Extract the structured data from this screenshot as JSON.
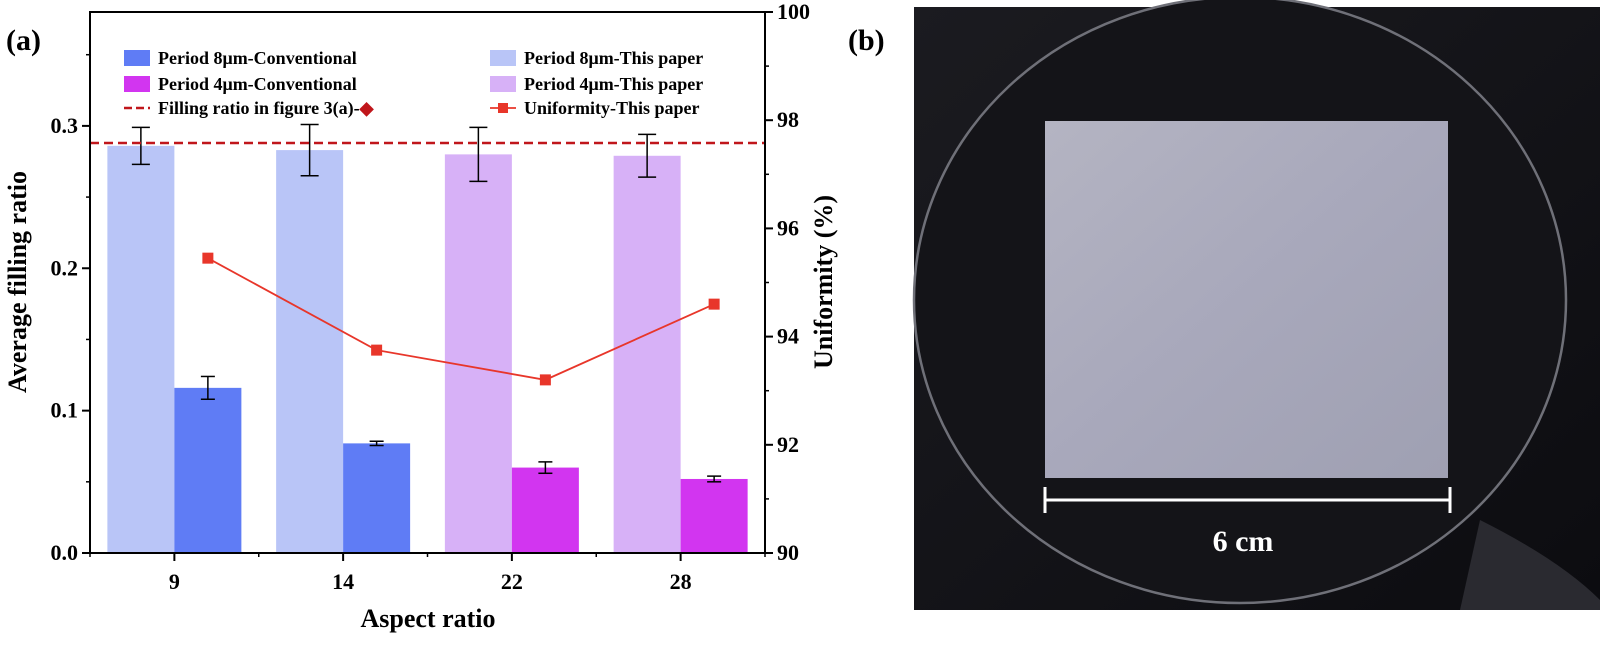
{
  "chart_data": {
    "type": "bar",
    "panel_label": "(a)",
    "xlabel": "Aspect ratio",
    "ylabel": "Average filling ratio",
    "y2label": "Uniformity (%)",
    "categories": [
      "9",
      "14",
      "22",
      "28"
    ],
    "ylim": [
      0,
      0.38
    ],
    "yticks": [
      0.0,
      0.1,
      0.2,
      0.3
    ],
    "y2lim": [
      90,
      100
    ],
    "y2ticks": [
      90,
      92,
      94,
      96,
      98,
      100
    ],
    "legend_placement": "top",
    "series": [
      {
        "name": "Period 8μm-This paper",
        "kind": "bar",
        "slot": 0,
        "color": "#b9c5f7",
        "values": [
          0.286,
          0.283,
          null,
          null
        ],
        "errors": [
          0.013,
          0.018,
          null,
          null
        ]
      },
      {
        "name": "Period 4μm-This paper",
        "kind": "bar",
        "slot": 0,
        "color": "#d7b1f7",
        "values": [
          null,
          null,
          0.28,
          0.279
        ],
        "errors": [
          null,
          null,
          0.019,
          0.015
        ]
      },
      {
        "name": "Period 8μm-Conventional",
        "kind": "bar",
        "slot": 1,
        "color": "#5f7cf5",
        "values": [
          0.116,
          0.077,
          null,
          null
        ],
        "errors": [
          0.008,
          0.0015,
          null,
          null
        ]
      },
      {
        "name": "Period 4μm-Conventional",
        "kind": "bar",
        "slot": 1,
        "color": "#d235f0",
        "values": [
          null,
          null,
          0.06,
          0.052
        ],
        "errors": [
          null,
          null,
          0.004,
          0.002
        ]
      },
      {
        "name": "Uniformity-This paper",
        "kind": "line",
        "axis": "y2",
        "color": "#e8362a",
        "values": [
          95.45,
          93.75,
          93.2,
          94.6
        ]
      }
    ],
    "reference_line": {
      "name": "Filling ratio in figure 3(a)-◆",
      "value": 0.288,
      "color": "#c0161b"
    }
  },
  "photo": {
    "panel_label": "(b)",
    "scale_bar_label": "6 cm"
  }
}
